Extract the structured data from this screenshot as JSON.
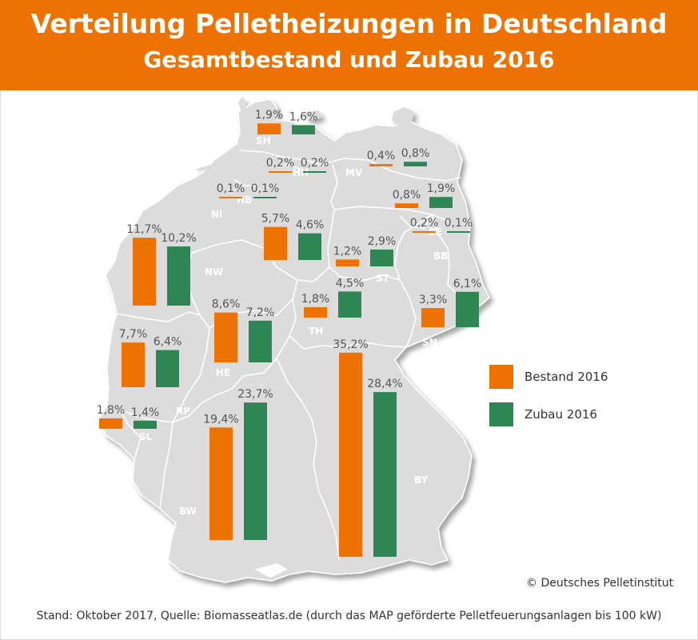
{
  "header": {
    "title": "Verteilung Pelletheizungen in Deutschland",
    "subtitle": "Gesamtbestand und Zubau 2016"
  },
  "colors": {
    "accent": "#ee7203",
    "bestand": "#ee7203",
    "zubau": "#2e8655",
    "land": "#dcdcdc"
  },
  "legend": {
    "bestand": "Bestand 2016",
    "zubau": "Zubau 2016"
  },
  "states": [
    {
      "code": "SH",
      "bestand": 1.9,
      "zubau": 1.6,
      "bestand_label": "1,9%",
      "zubau_label": "1,6%"
    },
    {
      "code": "HH",
      "bestand": 0.2,
      "zubau": 0.2,
      "bestand_label": "0,2%",
      "zubau_label": "0,2%"
    },
    {
      "code": "MV",
      "bestand": 0.4,
      "zubau": 0.8,
      "bestand_label": "0,4%",
      "zubau_label": "0,8%"
    },
    {
      "code": "HB",
      "bestand": 0.1,
      "zubau": 0.1,
      "bestand_label": "0,1%",
      "zubau_label": "0,1%"
    },
    {
      "code": "NI",
      "bestand": 5.7,
      "zubau": 4.6,
      "bestand_label": "5,7%",
      "zubau_label": "4,6%"
    },
    {
      "code": "BB",
      "bestand": 0.8,
      "zubau": 1.9,
      "bestand_label": "0,8%",
      "zubau_label": "1,9%"
    },
    {
      "code": "BE",
      "bestand": 0.2,
      "zubau": 0.1,
      "bestand_label": "0,2%",
      "zubau_label": "0,1%"
    },
    {
      "code": "NW",
      "bestand": 11.7,
      "zubau": 10.2,
      "bestand_label": "11,7%",
      "zubau_label": "10,2%"
    },
    {
      "code": "ST",
      "bestand": 1.2,
      "zubau": 2.9,
      "bestand_label": "1,2%",
      "zubau_label": "2,9%"
    },
    {
      "code": "TH",
      "bestand": 1.8,
      "zubau": 4.5,
      "bestand_label": "1,8%",
      "zubau_label": "4,5%"
    },
    {
      "code": "HE",
      "bestand": 8.6,
      "zubau": 7.2,
      "bestand_label": "8,6%",
      "zubau_label": "7,2%"
    },
    {
      "code": "SN",
      "bestand": 3.3,
      "zubau": 6.1,
      "bestand_label": "3,3%",
      "zubau_label": "6,1%"
    },
    {
      "code": "RP",
      "bestand": 7.7,
      "zubau": 6.4,
      "bestand_label": "7,7%",
      "zubau_label": "6,4%"
    },
    {
      "code": "SL",
      "bestand": 1.8,
      "zubau": 1.4,
      "bestand_label": "1,8%",
      "zubau_label": "1,4%"
    },
    {
      "code": "BW",
      "bestand": 19.4,
      "zubau": 23.7,
      "bestand_label": "19,4%",
      "zubau_label": "23,7%"
    },
    {
      "code": "BY",
      "bestand": 35.2,
      "zubau": 28.4,
      "bestand_label": "35,2%",
      "zubau_label": "28,4%"
    }
  ],
  "copyright": "© Deutsches Pelletinstitut",
  "footer": "Stand: Oktober 2017, Quelle: Biomasseatlas.de (durch das MAP geförderte Pelletfeuerungsanlagen bis 100 kW)"
}
